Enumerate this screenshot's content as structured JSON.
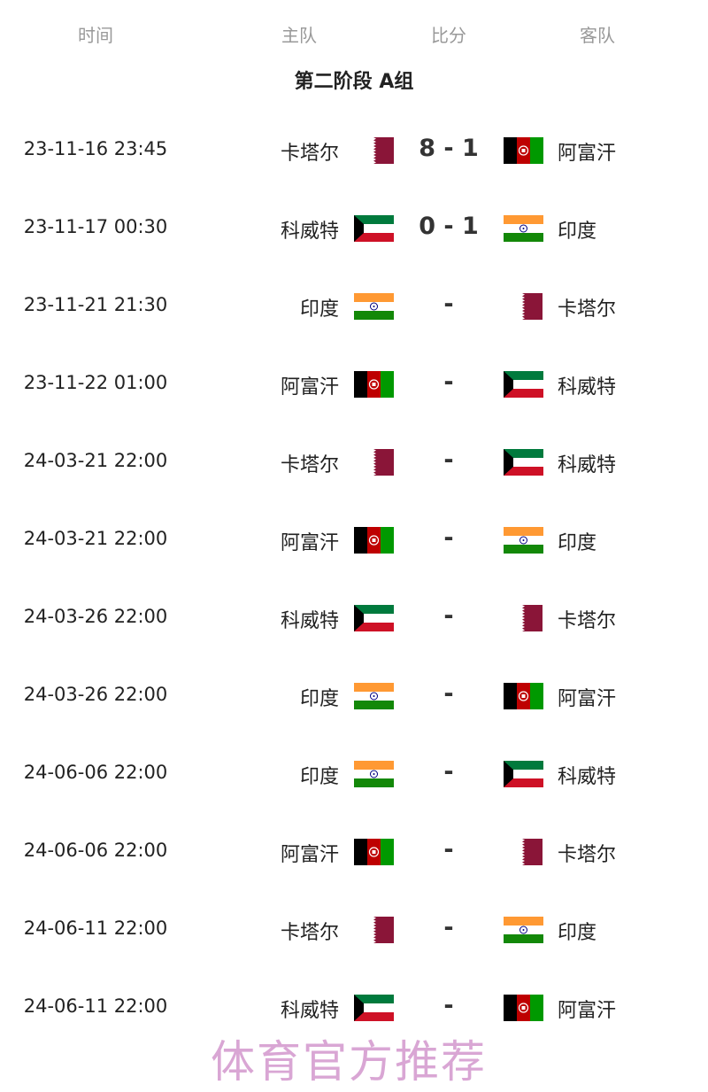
{
  "header": {
    "time": "时间",
    "home": "主队",
    "score": "比分",
    "away": "客队"
  },
  "group_title": "第二阶段 A组",
  "matches": [
    {
      "time": "23-11-16 23:45",
      "home": "卡塔尔",
      "home_flag": "qatar-flag",
      "score": "8 - 1",
      "away": "阿富汗",
      "away_flag": "afghanistan-flag"
    },
    {
      "time": "23-11-17 00:30",
      "home": "科威特",
      "home_flag": "kuwait-flag",
      "score": "0 - 1",
      "away": "印度",
      "away_flag": "india-flag"
    },
    {
      "time": "23-11-21 21:30",
      "home": "印度",
      "home_flag": "india-flag",
      "score": "-",
      "away": "卡塔尔",
      "away_flag": "qatar-flag"
    },
    {
      "time": "23-11-22 01:00",
      "home": "阿富汗",
      "home_flag": "afghanistan-flag",
      "score": "-",
      "away": "科威特",
      "away_flag": "kuwait-flag"
    },
    {
      "time": "24-03-21 22:00",
      "home": "卡塔尔",
      "home_flag": "qatar-flag",
      "score": "-",
      "away": "科威特",
      "away_flag": "kuwait-flag"
    },
    {
      "time": "24-03-21 22:00",
      "home": "阿富汗",
      "home_flag": "afghanistan-flag",
      "score": "-",
      "away": "印度",
      "away_flag": "india-flag"
    },
    {
      "time": "24-03-26 22:00",
      "home": "科威特",
      "home_flag": "kuwait-flag",
      "score": "-",
      "away": "卡塔尔",
      "away_flag": "qatar-flag"
    },
    {
      "time": "24-03-26 22:00",
      "home": "印度",
      "home_flag": "india-flag",
      "score": "-",
      "away": "阿富汗",
      "away_flag": "afghanistan-flag"
    },
    {
      "time": "24-06-06 22:00",
      "home": "印度",
      "home_flag": "india-flag",
      "score": "-",
      "away": "科威特",
      "away_flag": "kuwait-flag"
    },
    {
      "time": "24-06-06 22:00",
      "home": "阿富汗",
      "home_flag": "afghanistan-flag",
      "score": "-",
      "away": "卡塔尔",
      "away_flag": "qatar-flag"
    },
    {
      "time": "24-06-11 22:00",
      "home": "卡塔尔",
      "home_flag": "qatar-flag",
      "score": "-",
      "away": "印度",
      "away_flag": "india-flag"
    },
    {
      "time": "24-06-11 22:00",
      "home": "科威特",
      "home_flag": "kuwait-flag",
      "score": "-",
      "away": "阿富汗",
      "away_flag": "afghanistan-flag"
    }
  ],
  "watermark": "体育官方推荐",
  "colors": {
    "header_text": "#999999",
    "text": "#222222",
    "watermark_start": "#f2a9c8",
    "watermark_end": "#c9a4e0"
  }
}
